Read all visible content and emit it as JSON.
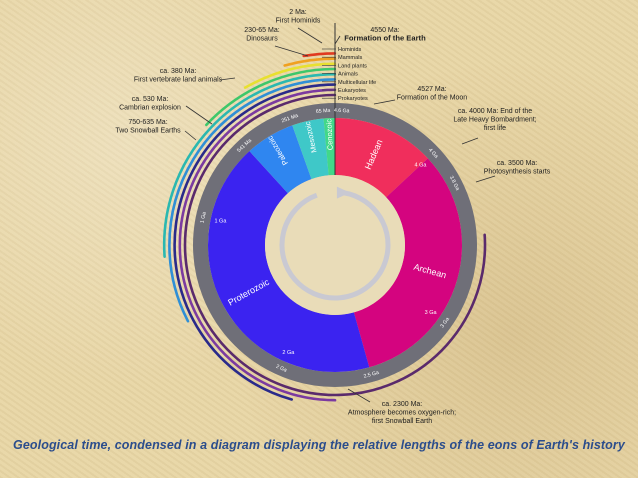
{
  "eons": [
    {
      "name": "Hadean",
      "start_ga": 4.6,
      "end_ga": 4.0,
      "color": "#f02e5c"
    },
    {
      "name": "Archean",
      "start_ga": 4.0,
      "end_ga": 2.5,
      "color": "#d4047f"
    },
    {
      "name": "Proterozoic",
      "start_ga": 2.5,
      "end_ga": 0.541,
      "color": "#3b23f0"
    },
    {
      "name": "Paleozoic",
      "start_ga": 0.541,
      "end_ga": 0.251,
      "color": "#2f86f0"
    },
    {
      "name": "Mesozoic",
      "start_ga": 0.251,
      "end_ga": 0.066,
      "color": "#3fc8c8"
    },
    {
      "name": "Cenozoic",
      "start_ga": 0.066,
      "end_ga": 0.0,
      "color": "#41d889"
    }
  ],
  "ring_ticks": [
    {
      "label": "4.6 Ga",
      "age_ga": 4.6
    },
    {
      "label": "4 Ga",
      "age_ga": 4.0
    },
    {
      "label": "3.8 Ga",
      "age_ga": 3.8
    },
    {
      "label": "3 Ga",
      "age_ga": 3.0
    },
    {
      "label": "2.5 Ga",
      "age_ga": 2.5
    },
    {
      "label": "2 Ga",
      "age_ga": 2.0
    },
    {
      "label": "1 Ga",
      "age_ga": 1.0
    },
    {
      "label": "541 Ma",
      "age_ga": 0.541
    },
    {
      "label": "251 Ma",
      "age_ga": 0.251
    },
    {
      "label": "65 Ma",
      "age_ga": 0.065
    }
  ],
  "inner_ticks": [
    {
      "label": "4 Ga",
      "age_ga": 4.0
    },
    {
      "label": "3 Ga",
      "age_ga": 3.0
    },
    {
      "label": "2 Ga",
      "age_ga": 2.0
    },
    {
      "label": "1 Ga",
      "age_ga": 1.0
    }
  ],
  "life_arcs": [
    {
      "start_ga": 3.5,
      "color": "#5a2a6c"
    },
    {
      "start_ga": 2.3,
      "color": "#7b3aa0"
    },
    {
      "start_ga": 2.1,
      "color": "#2a2a8a"
    },
    {
      "start_ga": 1.5,
      "color": "#2f8fd6"
    },
    {
      "start_ga": 1.2,
      "color": "#2ab8b0"
    },
    {
      "start_ga": 0.6,
      "color": "#3ec76a"
    },
    {
      "start_ga": 0.38,
      "color": "#e8e030"
    },
    {
      "start_ga": 0.2,
      "color": "#f0a020"
    },
    {
      "start_ga": 0.12,
      "color": "#e03a20"
    }
  ],
  "events": [
    {
      "label": "2 Ma:\nFirst Hominids"
    },
    {
      "label": "230-65 Ma:\nDinosaurs"
    },
    {
      "label": "4550 Ma:\nFormation of the Earth"
    },
    {
      "label": "ca. 380 Ma:\nFirst vertebrate land animals"
    },
    {
      "label": "ca. 530 Ma:\nCambrian explosion"
    },
    {
      "label": "750-635 Ma:\nTwo Snowball Earths"
    },
    {
      "label": "4527 Ma:\nFormation of the Moon"
    },
    {
      "label": "ca. 4000 Ma: End of the\nLate Heavy Bombardment;\nfirst life"
    },
    {
      "label": "ca. 3500 Ma:\nPhotosynthesis starts"
    },
    {
      "label": "ca. 2300 Ma:\nAtmosphere becomes oxygen-rich;\nfirst Snowball Earth"
    }
  ],
  "life_legend": [
    "Hominids",
    "Mammals",
    "Land plants",
    "Animals",
    "Multicellular life",
    "Eukaryotes",
    "Prokaryotes"
  ],
  "caption": "Geological time, condensed in a diagram displaying the relative lengths of the eons of Earth's history"
}
